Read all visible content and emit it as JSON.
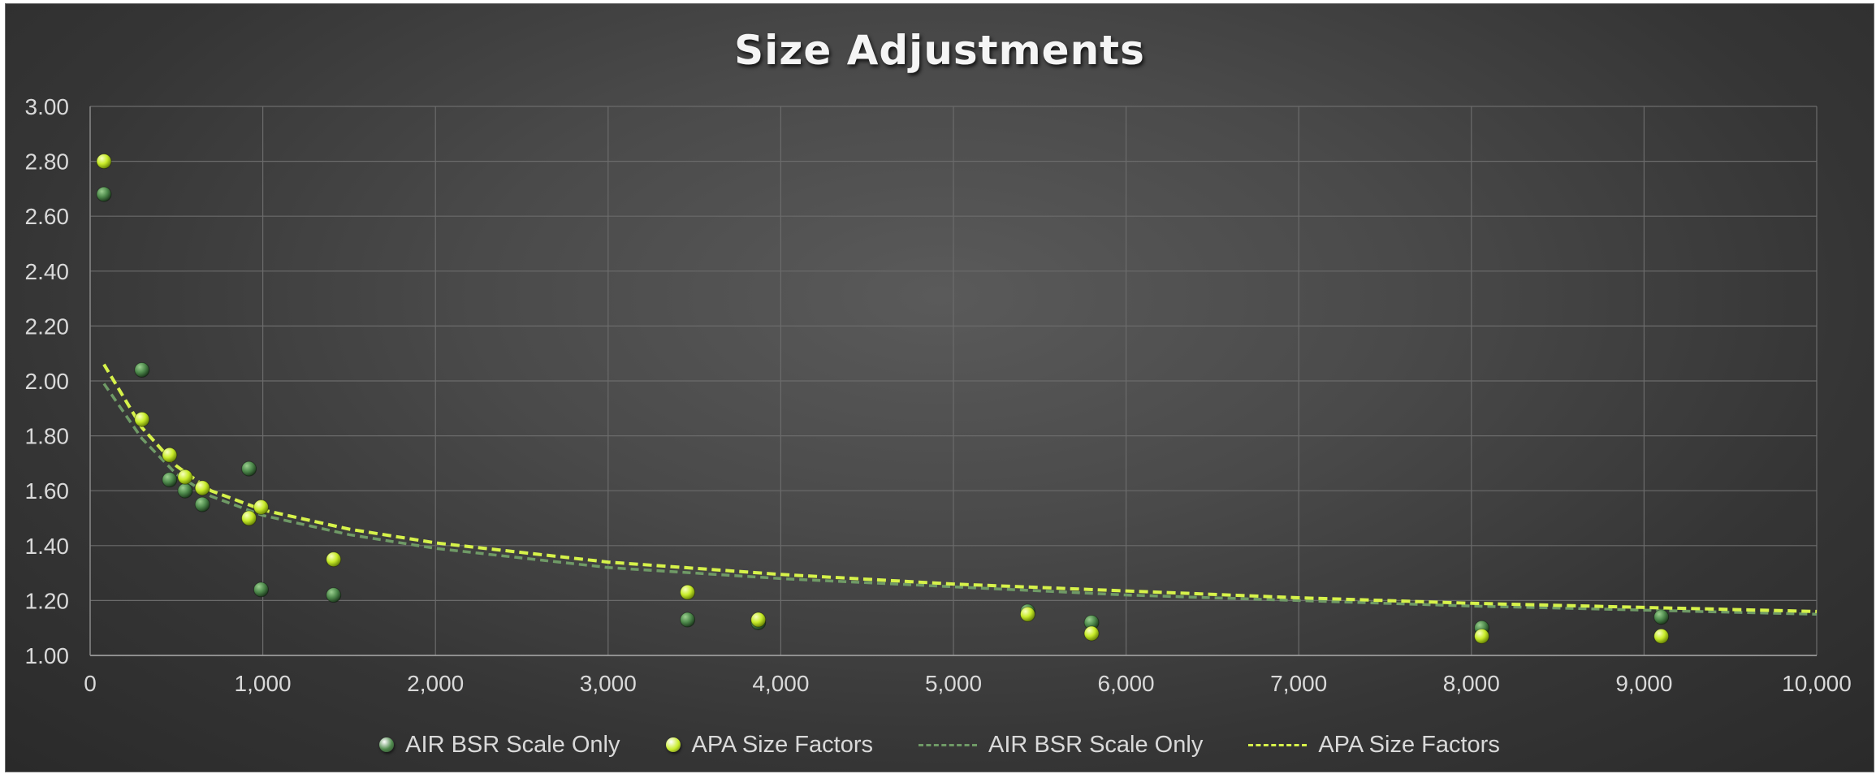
{
  "chart_data": {
    "type": "scatter",
    "title": "Size Adjustments",
    "xlabel": "",
    "ylabel": "",
    "xlim": [
      0,
      10000
    ],
    "ylim": [
      1.0,
      3.0
    ],
    "x_ticks": [
      "0",
      "1,000",
      "2,000",
      "3,000",
      "4,000",
      "5,000",
      "6,000",
      "7,000",
      "8,000",
      "9,000",
      "10,000"
    ],
    "y_ticks": [
      "1.00",
      "1.20",
      "1.40",
      "1.60",
      "1.80",
      "2.00",
      "2.20",
      "2.40",
      "2.60",
      "2.80",
      "3.00"
    ],
    "grid": true,
    "legend_position": "bottom",
    "series": [
      {
        "name": "AIR BSR Scale Only",
        "kind": "points",
        "color": "#4e8a4c",
        "points": [
          [
            80,
            2.68
          ],
          [
            300,
            2.04
          ],
          [
            460,
            1.64
          ],
          [
            550,
            1.6
          ],
          [
            650,
            1.55
          ],
          [
            920,
            1.68
          ],
          [
            990,
            1.24
          ],
          [
            1410,
            1.22
          ],
          [
            3460,
            1.13
          ],
          [
            3870,
            1.12
          ],
          [
            5430,
            1.16
          ],
          [
            5800,
            1.12
          ],
          [
            8060,
            1.1
          ],
          [
            9100,
            1.14
          ]
        ]
      },
      {
        "name": "APA Size Factors",
        "kind": "points",
        "color": "#c8ec2a",
        "points": [
          [
            80,
            2.8
          ],
          [
            300,
            1.86
          ],
          [
            460,
            1.73
          ],
          [
            550,
            1.65
          ],
          [
            650,
            1.61
          ],
          [
            920,
            1.5
          ],
          [
            990,
            1.54
          ],
          [
            1410,
            1.35
          ],
          [
            3460,
            1.23
          ],
          [
            3870,
            1.13
          ],
          [
            5430,
            1.15
          ],
          [
            5800,
            1.08
          ],
          [
            8060,
            1.07
          ],
          [
            9100,
            1.07
          ]
        ]
      },
      {
        "name": "AIR BSR Scale Only",
        "kind": "trendline",
        "color": "#6f9a66",
        "x": [
          80,
          300,
          500,
          700,
          1000,
          1500,
          2000,
          3000,
          4000,
          5000,
          6000,
          7000,
          8000,
          9000,
          10000
        ],
        "values": [
          1.99,
          1.79,
          1.66,
          1.58,
          1.51,
          1.44,
          1.39,
          1.32,
          1.28,
          1.25,
          1.22,
          1.2,
          1.18,
          1.165,
          1.15
        ]
      },
      {
        "name": "APA Size Factors",
        "kind": "trendline",
        "color": "#d6f24a",
        "x": [
          80,
          300,
          500,
          700,
          1000,
          1500,
          2000,
          3000,
          4000,
          5000,
          6000,
          7000,
          8000,
          9000,
          10000
        ],
        "values": [
          2.06,
          1.83,
          1.69,
          1.6,
          1.53,
          1.46,
          1.41,
          1.34,
          1.295,
          1.26,
          1.235,
          1.21,
          1.19,
          1.175,
          1.16
        ]
      }
    ]
  }
}
